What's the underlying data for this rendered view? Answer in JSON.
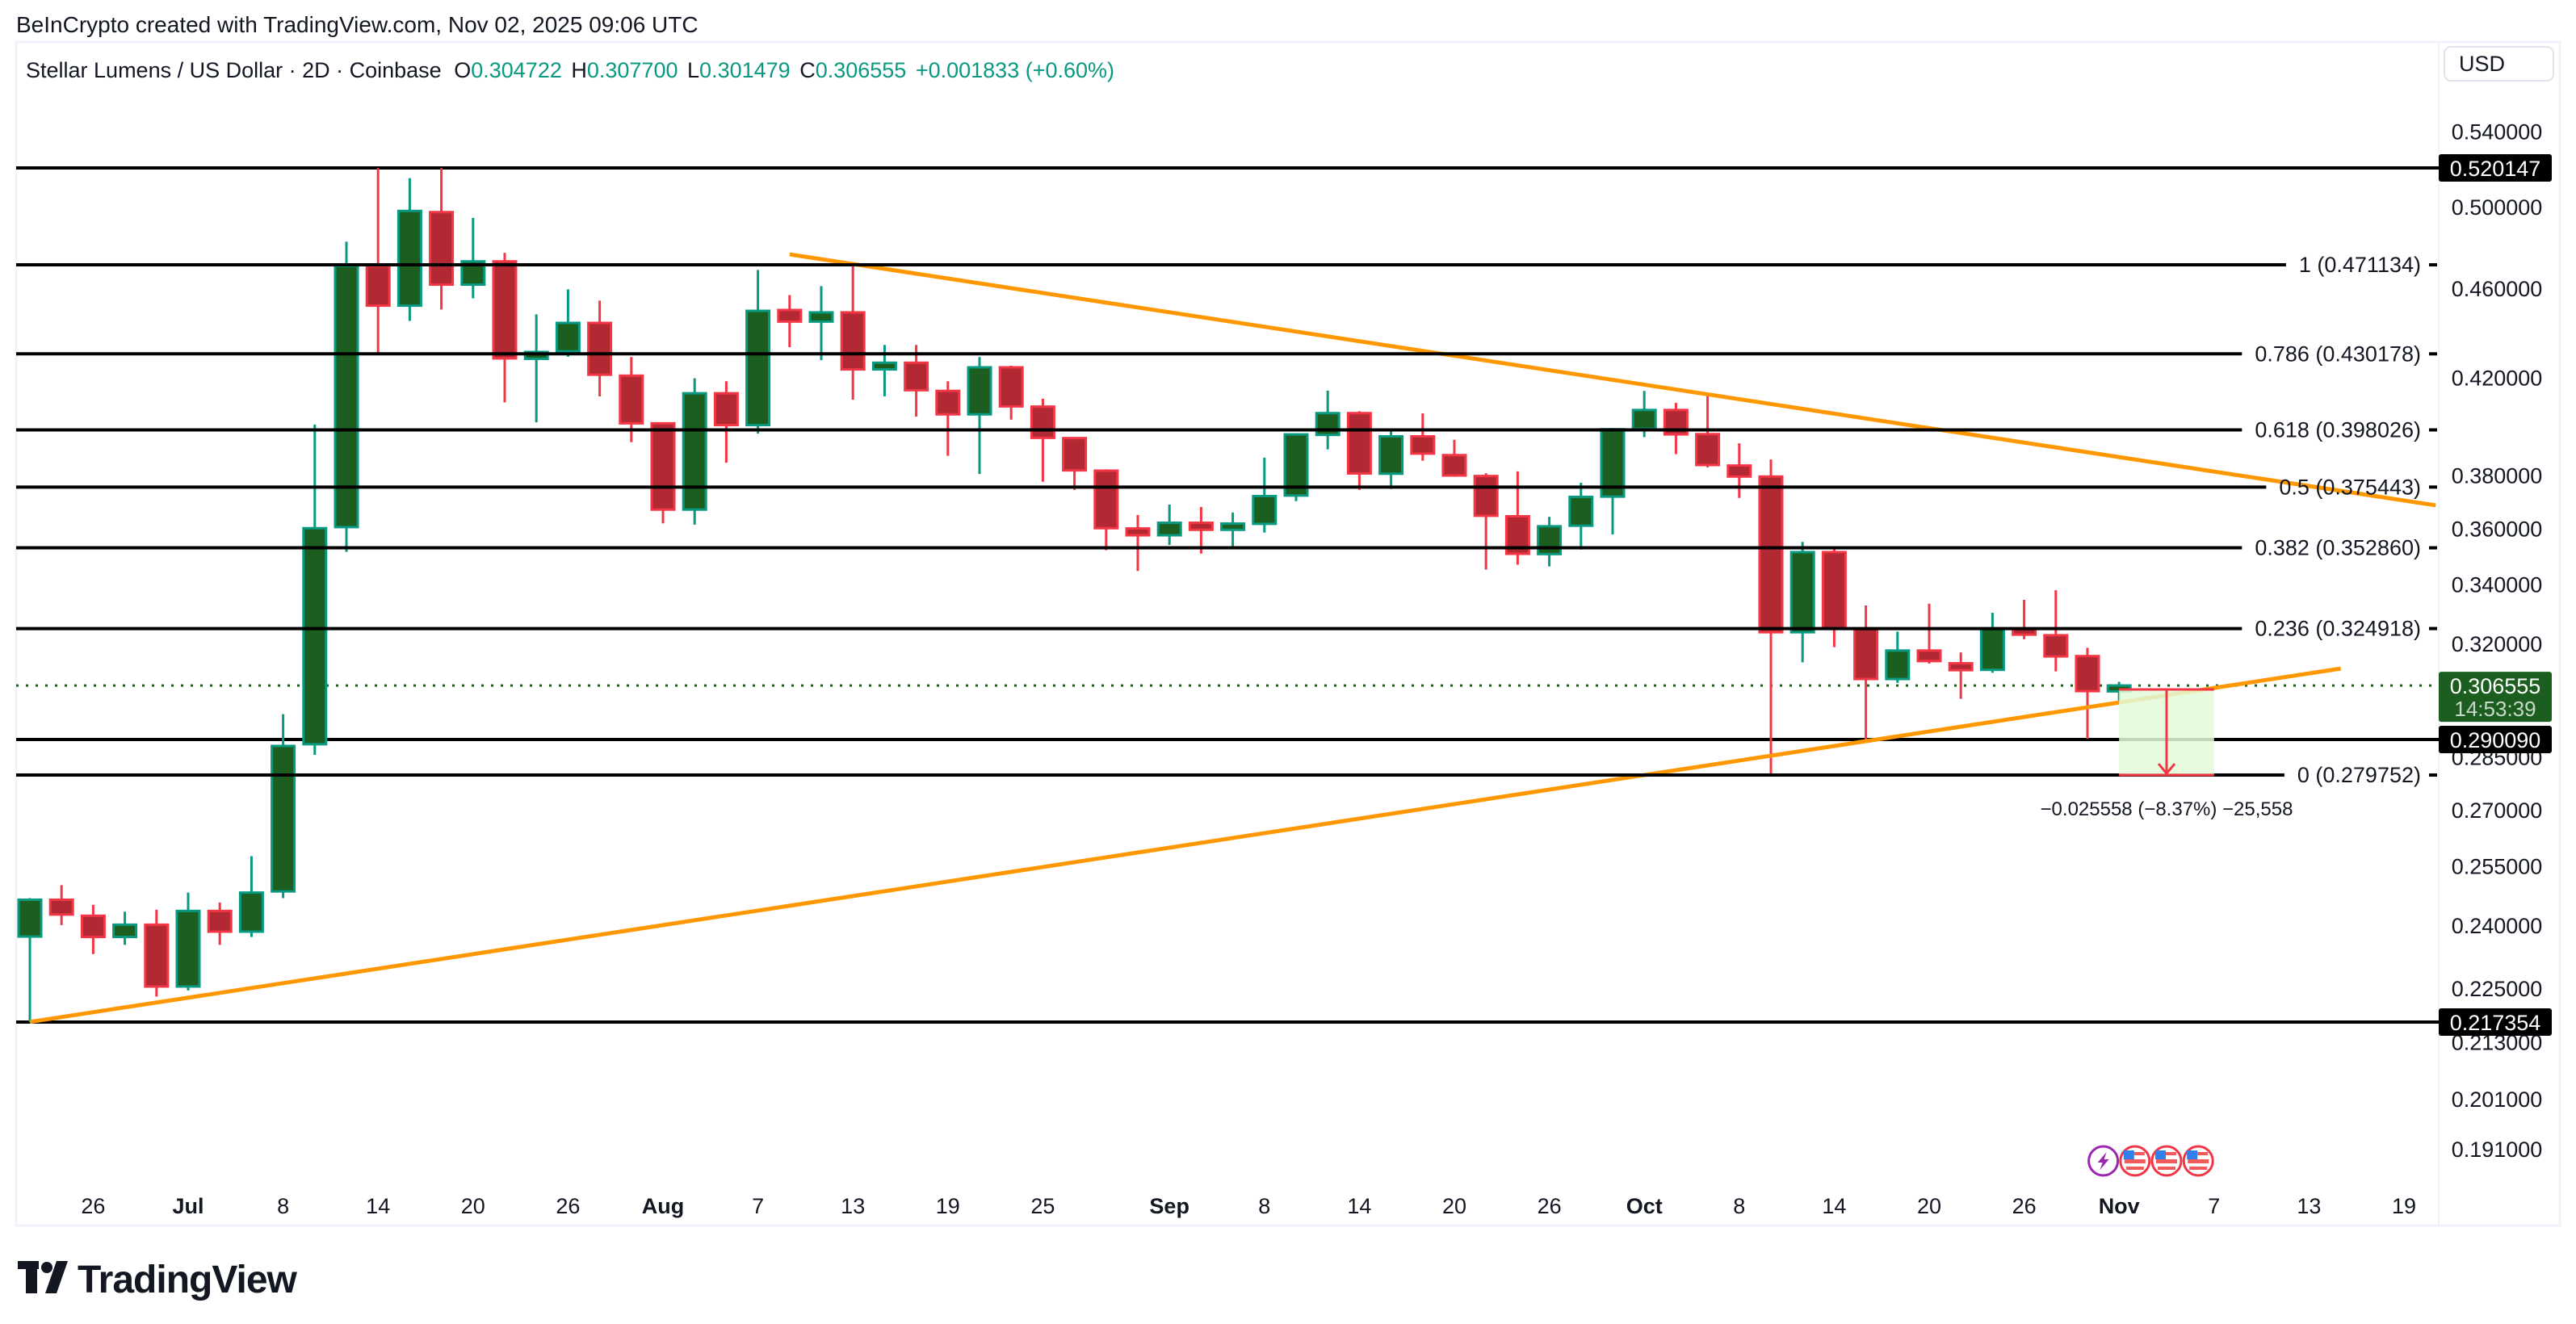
{
  "watermark": "BeInCrypto created with TradingView.com, Nov 02, 2025 09:06 UTC",
  "legend": {
    "symbol": "Stellar Lumens / US Dollar · 2D · Coinbase",
    "o_label": "O",
    "o": "0.304722",
    "h_label": "H",
    "h": "0.307700",
    "l_label": "L",
    "l": "0.301479",
    "c_label": "C",
    "c": "0.306555",
    "change": "+0.001833 (+0.60%)"
  },
  "currency_button": "USD",
  "logo_text": "TradingView",
  "colors": {
    "up_body": "#1b5e20",
    "up_border": "#089981",
    "down_body": "#b22833",
    "down_border": "#f23645",
    "trendline": "#ff9800",
    "level_line": "#000000",
    "projection_fill": "#e3fbd9",
    "projection_line": "#f23645",
    "last_price_bg": "#1b5e20"
  },
  "chart_data": {
    "type": "candlestick",
    "scale": "log",
    "interval": "2D",
    "ylim": [
      0.186,
      0.548
    ],
    "xlim": [
      "2025-06-20",
      "2025-11-22"
    ],
    "grid": false,
    "columns": [
      "date",
      "open",
      "high",
      "low",
      "close"
    ],
    "candles": [
      [
        "2025-06-22",
        0.2372,
        0.2467,
        0.2174,
        0.2463
      ],
      [
        "2025-06-24",
        0.2463,
        0.25,
        0.24,
        0.2426
      ],
      [
        "2025-06-26",
        0.2423,
        0.245,
        0.233,
        0.2371
      ],
      [
        "2025-06-28",
        0.2371,
        0.2433,
        0.2352,
        0.2401
      ],
      [
        "2025-06-30",
        0.2401,
        0.2438,
        0.2231,
        0.2254
      ],
      [
        "2025-07-02",
        0.2254,
        0.2481,
        0.2245,
        0.2435
      ],
      [
        "2025-07-04",
        0.2435,
        0.2456,
        0.2352,
        0.2384
      ],
      [
        "2025-07-06",
        0.2384,
        0.2575,
        0.2371,
        0.2481
      ],
      [
        "2025-07-08",
        0.2484,
        0.2977,
        0.2467,
        0.2882
      ],
      [
        "2025-07-10",
        0.2887,
        0.4002,
        0.2856,
        0.36
      ],
      [
        "2025-07-12",
        0.3604,
        0.4824,
        0.3514,
        0.4706
      ],
      [
        "2025-07-14",
        0.4706,
        0.5201,
        0.4297,
        0.4519
      ],
      [
        "2025-07-16",
        0.4519,
        0.5147,
        0.4449,
        0.4978
      ],
      [
        "2025-07-18",
        0.4972,
        0.5201,
        0.4501,
        0.4617
      ],
      [
        "2025-07-20",
        0.4617,
        0.4943,
        0.4553,
        0.4728
      ],
      [
        "2025-07-22",
        0.4728,
        0.4769,
        0.4094,
        0.4282
      ],
      [
        "2025-07-24",
        0.428,
        0.4479,
        0.4011,
        0.431
      ],
      [
        "2025-07-26",
        0.4313,
        0.4595,
        0.4289,
        0.444
      ],
      [
        "2025-07-28",
        0.444,
        0.4542,
        0.4119,
        0.4211
      ],
      [
        "2025-07-30",
        0.4207,
        0.4288,
        0.3931,
        0.4007
      ],
      [
        "2025-08-01",
        0.4007,
        0.4011,
        0.3618,
        0.3669
      ],
      [
        "2025-08-03",
        0.3669,
        0.4196,
        0.3613,
        0.4132
      ],
      [
        "2025-08-05",
        0.4132,
        0.4183,
        0.3849,
        0.4
      ],
      [
        "2025-08-07",
        0.4,
        0.4687,
        0.3965,
        0.4495
      ],
      [
        "2025-08-09",
        0.4499,
        0.4568,
        0.4331,
        0.4446
      ],
      [
        "2025-08-11",
        0.4446,
        0.461,
        0.4274,
        0.4488
      ],
      [
        "2025-08-13",
        0.4488,
        0.4709,
        0.4105,
        0.4234
      ],
      [
        "2025-08-15",
        0.4234,
        0.4341,
        0.4119,
        0.4263
      ],
      [
        "2025-08-17",
        0.4263,
        0.4341,
        0.4035,
        0.4145
      ],
      [
        "2025-08-19",
        0.4142,
        0.4183,
        0.3876,
        0.4044
      ],
      [
        "2025-08-21",
        0.4044,
        0.4288,
        0.3805,
        0.4243
      ],
      [
        "2025-08-23",
        0.4243,
        0.425,
        0.4022,
        0.4077
      ],
      [
        "2025-08-25",
        0.4076,
        0.4109,
        0.3775,
        0.3948
      ],
      [
        "2025-08-27",
        0.3947,
        0.395,
        0.3744,
        0.3819
      ],
      [
        "2025-08-29",
        0.3818,
        0.3823,
        0.352,
        0.36
      ],
      [
        "2025-08-31",
        0.3599,
        0.3649,
        0.3446,
        0.3574
      ],
      [
        "2025-09-02",
        0.3574,
        0.3688,
        0.3539,
        0.362
      ],
      [
        "2025-09-04",
        0.362,
        0.3679,
        0.3508,
        0.3594
      ],
      [
        "2025-09-06",
        0.3594,
        0.3658,
        0.3532,
        0.3617
      ],
      [
        "2025-09-08",
        0.3616,
        0.3869,
        0.3584,
        0.372
      ],
      [
        "2025-09-10",
        0.3722,
        0.3966,
        0.3701,
        0.3962
      ],
      [
        "2025-09-12",
        0.396,
        0.4143,
        0.3902,
        0.4049
      ],
      [
        "2025-09-14",
        0.4049,
        0.4057,
        0.3744,
        0.3807
      ],
      [
        "2025-09-16",
        0.3806,
        0.3985,
        0.3747,
        0.3954
      ],
      [
        "2025-09-18",
        0.3954,
        0.4048,
        0.3857,
        0.3885
      ],
      [
        "2025-09-20",
        0.3879,
        0.394,
        0.3794,
        0.3799
      ],
      [
        "2025-09-22",
        0.3797,
        0.3808,
        0.3451,
        0.3646
      ],
      [
        "2025-09-24",
        0.3644,
        0.3815,
        0.3468,
        0.3507
      ],
      [
        "2025-09-26",
        0.3506,
        0.3642,
        0.3462,
        0.3607
      ],
      [
        "2025-09-28",
        0.3609,
        0.3771,
        0.3522,
        0.3717
      ],
      [
        "2025-09-30",
        0.3718,
        0.3988,
        0.3577,
        0.3983
      ],
      [
        "2025-10-02",
        0.3985,
        0.4142,
        0.3951,
        0.4062
      ],
      [
        "2025-10-04",
        0.4062,
        0.4092,
        0.3883,
        0.3962
      ],
      [
        "2025-10-06",
        0.3963,
        0.413,
        0.3831,
        0.384
      ],
      [
        "2025-10-08",
        0.3838,
        0.3926,
        0.3713,
        0.3795
      ],
      [
        "2025-10-10",
        0.3795,
        0.3862,
        0.2802,
        0.3237
      ],
      [
        "2025-10-12",
        0.3237,
        0.355,
        0.3139,
        0.3513
      ],
      [
        "2025-10-14",
        0.3513,
        0.3533,
        0.3188,
        0.3248
      ],
      [
        "2025-10-16",
        0.3248,
        0.3327,
        0.2895,
        0.3086
      ],
      [
        "2025-10-18",
        0.3086,
        0.3239,
        0.3074,
        0.3177
      ],
      [
        "2025-10-20",
        0.3177,
        0.3333,
        0.3135,
        0.3143
      ],
      [
        "2025-10-22",
        0.3136,
        0.3171,
        0.3024,
        0.3114
      ],
      [
        "2025-10-24",
        0.3115,
        0.3302,
        0.3106,
        0.3248
      ],
      [
        "2025-10-26",
        0.3248,
        0.3346,
        0.3214,
        0.3229
      ],
      [
        "2025-10-28",
        0.3227,
        0.3379,
        0.311,
        0.3158
      ],
      [
        "2025-10-30",
        0.3159,
        0.3186,
        0.2903,
        0.3048
      ],
      [
        "2025-11-01",
        0.304722,
        0.3077,
        0.301479,
        0.306555
      ]
    ],
    "y_ticks": [
      "0.540000",
      "0.500000",
      "0.460000",
      "0.420000",
      "0.380000",
      "0.360000",
      "0.340000",
      "0.320000",
      "0.285000",
      "0.270000",
      "0.255000",
      "0.240000",
      "0.225000",
      "0.213000",
      "0.201000",
      "0.191000"
    ],
    "x_ticks": [
      {
        "label": "26",
        "date": "2025-06-26",
        "bold": false
      },
      {
        "label": "Jul",
        "date": "2025-07-02",
        "bold": true
      },
      {
        "label": "8",
        "date": "2025-07-08",
        "bold": false
      },
      {
        "label": "14",
        "date": "2025-07-14",
        "bold": false
      },
      {
        "label": "20",
        "date": "2025-07-20",
        "bold": false
      },
      {
        "label": "26",
        "date": "2025-07-26",
        "bold": false
      },
      {
        "label": "Aug",
        "date": "2025-08-01",
        "bold": true
      },
      {
        "label": "7",
        "date": "2025-08-07",
        "bold": false
      },
      {
        "label": "13",
        "date": "2025-08-13",
        "bold": false
      },
      {
        "label": "19",
        "date": "2025-08-19",
        "bold": false
      },
      {
        "label": "25",
        "date": "2025-08-25",
        "bold": false
      },
      {
        "label": "Sep",
        "date": "2025-09-02",
        "bold": true
      },
      {
        "label": "8",
        "date": "2025-09-08",
        "bold": false
      },
      {
        "label": "14",
        "date": "2025-09-14",
        "bold": false
      },
      {
        "label": "20",
        "date": "2025-09-20",
        "bold": false
      },
      {
        "label": "26",
        "date": "2025-09-26",
        "bold": false
      },
      {
        "label": "Oct",
        "date": "2025-10-02",
        "bold": true
      },
      {
        "label": "8",
        "date": "2025-10-08",
        "bold": false
      },
      {
        "label": "14",
        "date": "2025-10-14",
        "bold": false
      },
      {
        "label": "20",
        "date": "2025-10-20",
        "bold": false
      },
      {
        "label": "26",
        "date": "2025-10-26",
        "bold": false
      },
      {
        "label": "Nov",
        "date": "2025-11-01",
        "bold": true
      },
      {
        "label": "7",
        "date": "2025-11-07",
        "bold": false
      },
      {
        "label": "13",
        "date": "2025-11-13",
        "bold": false
      },
      {
        "label": "19",
        "date": "2025-11-19",
        "bold": false
      }
    ],
    "fib_levels": [
      {
        "label": "1 (0.471134)",
        "price": 0.471134
      },
      {
        "label": "0.786 (0.430178)",
        "price": 0.430178
      },
      {
        "label": "0.618 (0.398026)",
        "price": 0.398026
      },
      {
        "label": "0.5 (0.375443)",
        "price": 0.375443
      },
      {
        "label": "0.382 (0.352860)",
        "price": 0.35286
      },
      {
        "label": "0.236 (0.324918)",
        "price": 0.324918
      },
      {
        "label": "0 (0.279752)",
        "price": 0.279752
      }
    ],
    "horizontal_levels": [
      {
        "label": "0.520147",
        "price": 0.520147
      },
      {
        "label": "0.290090",
        "price": 0.29009
      },
      {
        "label": "0.217354",
        "price": 0.217354
      }
    ],
    "trendlines": [
      {
        "from": {
          "date": "2025-08-09",
          "price": 0.4762
        },
        "to": {
          "date": "2025-11-21",
          "price": 0.3685
        }
      },
      {
        "from": {
          "date": "2025-06-22",
          "price": 0.2174
        },
        "to": {
          "date": "2025-11-15",
          "price": 0.3119
        }
      }
    ],
    "last_price": {
      "label": "0.306555",
      "price": 0.306555,
      "countdown": "14:53:39"
    },
    "projection": {
      "from_date": "2025-11-01",
      "to_date": "2025-11-07",
      "top_price": 0.30531,
      "bottom_price": 0.279752,
      "label": "−0.025558 (−8.37%) −25,558"
    },
    "events": [
      {
        "icon": "lightning-icon",
        "date": "2025-10-31"
      },
      {
        "icon": "us-flag-icon",
        "date": "2025-11-02"
      },
      {
        "icon": "us-flag-icon",
        "date": "2025-11-04"
      },
      {
        "icon": "us-flag-icon",
        "date": "2025-11-06"
      }
    ]
  }
}
